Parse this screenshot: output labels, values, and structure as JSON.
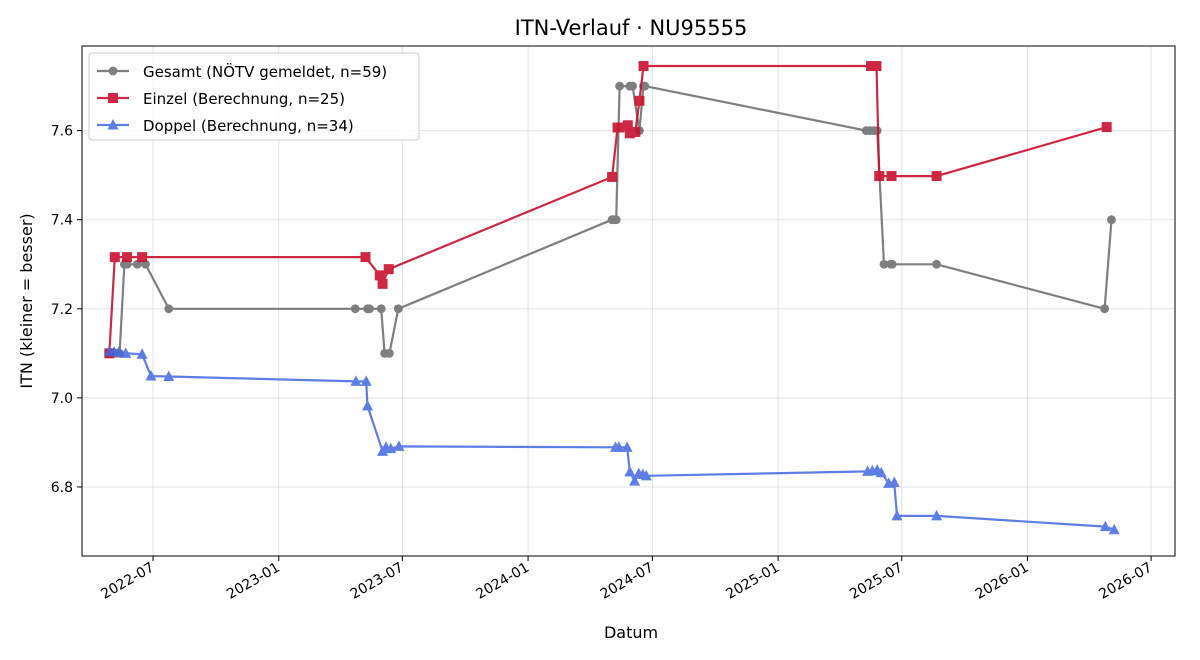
{
  "chart_data": {
    "type": "line",
    "title": "ITN-Verlauf · NU95555",
    "xlabel": "Datum",
    "ylabel": "ITN  (kleiner = besser)",
    "xlim": [
      "2022-03-19",
      "2026-08-05"
    ],
    "ylim": [
      6.645,
      7.79
    ],
    "x_ticks": [
      "2022-07",
      "2023-01",
      "2023-07",
      "2024-01",
      "2024-07",
      "2025-01",
      "2025-07",
      "2026-01",
      "2026-07"
    ],
    "y_ticks": [
      6.8,
      7.0,
      7.2,
      7.4,
      7.6
    ],
    "grid": true,
    "legend_position": "top-left",
    "series": [
      {
        "name": "Gesamt (NÖTV gemeldet, n=59)",
        "color": "#555555",
        "marker": "circle",
        "points": [
          [
            "2022-04-28",
            7.1
          ],
          [
            "2022-05-03",
            7.1
          ],
          [
            "2022-05-08",
            7.1
          ],
          [
            "2022-05-13",
            7.1
          ],
          [
            "2022-05-20",
            7.3
          ],
          [
            "2022-05-24",
            7.3
          ],
          [
            "2022-06-08",
            7.3
          ],
          [
            "2022-06-20",
            7.3
          ],
          [
            "2022-07-24",
            7.2
          ],
          [
            "2023-04-23",
            7.2
          ],
          [
            "2023-05-11",
            7.2
          ],
          [
            "2023-05-14",
            7.2
          ],
          [
            "2023-05-31",
            7.2
          ],
          [
            "2023-06-05",
            7.1
          ],
          [
            "2023-06-12",
            7.1
          ],
          [
            "2023-06-25",
            7.2
          ],
          [
            "2024-05-03",
            7.4
          ],
          [
            "2024-05-06",
            7.4
          ],
          [
            "2024-05-09",
            7.4
          ],
          [
            "2024-05-14",
            7.7
          ],
          [
            "2024-05-29",
            7.7
          ],
          [
            "2024-06-02",
            7.7
          ],
          [
            "2024-06-12",
            7.6
          ],
          [
            "2024-06-18",
            7.7
          ],
          [
            "2024-06-20",
            7.7
          ],
          [
            "2025-05-10",
            7.6
          ],
          [
            "2025-05-15",
            7.6
          ],
          [
            "2025-05-21",
            7.6
          ],
          [
            "2025-05-26",
            7.6
          ],
          [
            "2025-06-05",
            7.3
          ],
          [
            "2025-06-15",
            7.3
          ],
          [
            "2025-06-17",
            7.3
          ],
          [
            "2025-08-21",
            7.3
          ],
          [
            "2026-04-24",
            7.2
          ],
          [
            "2026-05-04",
            7.4
          ]
        ]
      },
      {
        "name": "Einzel (Berechnung, n=25)",
        "color": "#c8102e",
        "marker": "square",
        "points": [
          [
            "2022-04-28",
            7.1
          ],
          [
            "2022-05-06",
            7.316
          ],
          [
            "2022-05-24",
            7.316
          ],
          [
            "2022-06-15",
            7.316
          ],
          [
            "2023-05-08",
            7.316
          ],
          [
            "2023-05-29",
            7.275
          ],
          [
            "2023-06-02",
            7.256
          ],
          [
            "2023-06-11",
            7.289
          ],
          [
            "2024-05-03",
            7.496
          ],
          [
            "2024-05-11",
            7.607
          ],
          [
            "2024-05-14",
            7.607
          ],
          [
            "2024-05-26",
            7.612
          ],
          [
            "2024-05-29",
            7.594
          ],
          [
            "2024-06-06",
            7.597
          ],
          [
            "2024-06-12",
            7.667
          ],
          [
            "2024-06-18",
            7.745
          ],
          [
            "2025-05-17",
            7.745
          ],
          [
            "2025-05-25",
            7.745
          ],
          [
            "2025-05-29",
            7.498
          ],
          [
            "2025-06-16",
            7.498
          ],
          [
            "2025-08-21",
            7.498
          ],
          [
            "2026-04-27",
            7.608
          ]
        ]
      },
      {
        "name": "Doppel (Berechnung, n=34)",
        "color": "#4169e1",
        "marker": "triangle",
        "points": [
          [
            "2022-04-28",
            7.104
          ],
          [
            "2022-05-05",
            7.103
          ],
          [
            "2022-05-12",
            7.103
          ],
          [
            "2022-05-22",
            7.1
          ],
          [
            "2022-06-15",
            7.098
          ],
          [
            "2022-06-28",
            7.049
          ],
          [
            "2022-07-24",
            7.048
          ],
          [
            "2023-04-24",
            7.037
          ],
          [
            "2023-05-09",
            7.037
          ],
          [
            "2023-05-11",
            6.982
          ],
          [
            "2023-06-02",
            6.88
          ],
          [
            "2023-06-07",
            6.889
          ],
          [
            "2023-06-14",
            6.886
          ],
          [
            "2023-06-26",
            6.891
          ],
          [
            "2024-05-08",
            6.889
          ],
          [
            "2024-05-13",
            6.889
          ],
          [
            "2024-05-25",
            6.889
          ],
          [
            "2024-05-29",
            6.834
          ],
          [
            "2024-06-05",
            6.813
          ],
          [
            "2024-06-11",
            6.83
          ],
          [
            "2024-06-17",
            6.828
          ],
          [
            "2024-06-22",
            6.825
          ],
          [
            "2025-05-12",
            6.835
          ],
          [
            "2025-05-19",
            6.836
          ],
          [
            "2025-05-26",
            6.838
          ],
          [
            "2025-06-01",
            6.832
          ],
          [
            "2025-06-12",
            6.808
          ],
          [
            "2025-06-20",
            6.81
          ],
          [
            "2025-06-24",
            6.735
          ],
          [
            "2025-08-21",
            6.735
          ],
          [
            "2026-04-25",
            6.711
          ],
          [
            "2026-05-08",
            6.704
          ]
        ]
      }
    ]
  }
}
